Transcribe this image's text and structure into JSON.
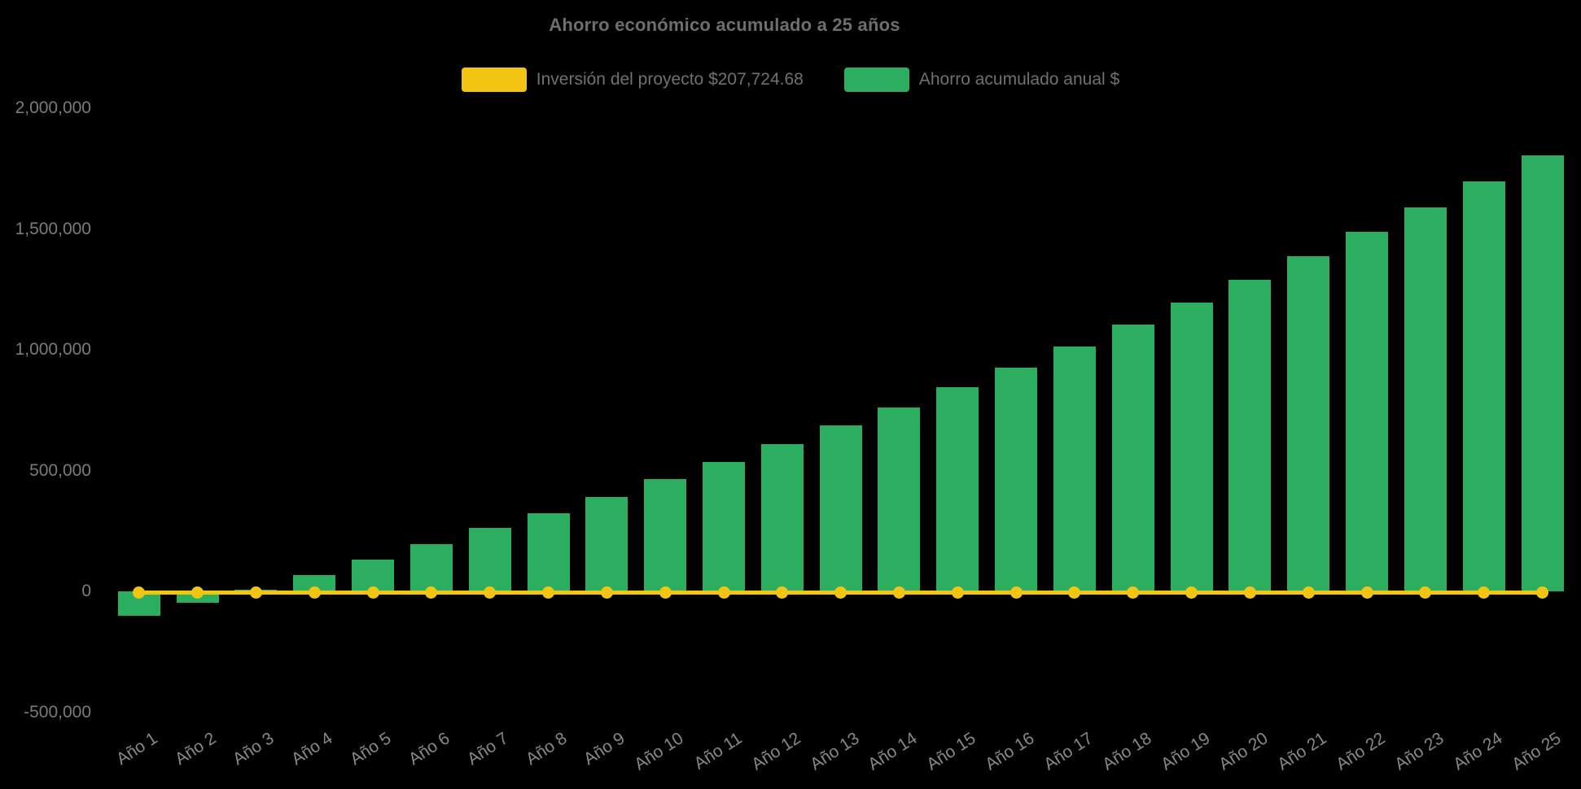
{
  "chart_data": {
    "type": "bar",
    "title": "Ahorro económico acumulado a 25 años",
    "categories": [
      "Año 1",
      "Año 2",
      "Año 3",
      "Año 4",
      "Año 5",
      "Año 6",
      "Año 7",
      "Año 8",
      "Año 9",
      "Año 10",
      "Año 11",
      "Año 12",
      "Año 13",
      "Año 14",
      "Año 15",
      "Año 16",
      "Año 17",
      "Año 18",
      "Año 19",
      "Año 20",
      "Año 21",
      "Año 22",
      "Año 23",
      "Año 24",
      "Año 25"
    ],
    "series": [
      {
        "name": "Inversión del proyecto $207,724.68",
        "type": "line",
        "color": "#f2c513",
        "investment_amount_shown_in_label": "207,724.68",
        "values": [
          0,
          0,
          0,
          0,
          0,
          0,
          0,
          0,
          0,
          0,
          0,
          0,
          0,
          0,
          0,
          0,
          0,
          0,
          0,
          0,
          0,
          0,
          0,
          0,
          0
        ]
      },
      {
        "name": "Ahorro acumulado anual $",
        "type": "bar",
        "color": "#2bae60",
        "values": [
          -101000,
          -47000,
          8000,
          67000,
          130000,
          196000,
          264000,
          322000,
          392000,
          464000,
          536000,
          610000,
          686000,
          762000,
          845000,
          926000,
          1013000,
          1104000,
          1195000,
          1289000,
          1386000,
          1487000,
          1588000,
          1696000,
          1804000
        ]
      }
    ],
    "xlabel": "",
    "ylabel": "",
    "ylim": [
      -500000,
      2000000
    ],
    "grid": false,
    "legend_position": "top-center",
    "x_label_rotation_deg": -33,
    "y_axis": {
      "tick_values": [
        -500000,
        0,
        500000,
        1000000,
        1500000,
        2000000
      ],
      "tick_labels": [
        "-500,000",
        "0",
        "500,000",
        "1,000,000",
        "1,500,000",
        "2,000,000"
      ]
    },
    "background_color": "#000000",
    "text_color_title": "#6e6e6e",
    "text_color_axis": "#7b7b7b"
  }
}
